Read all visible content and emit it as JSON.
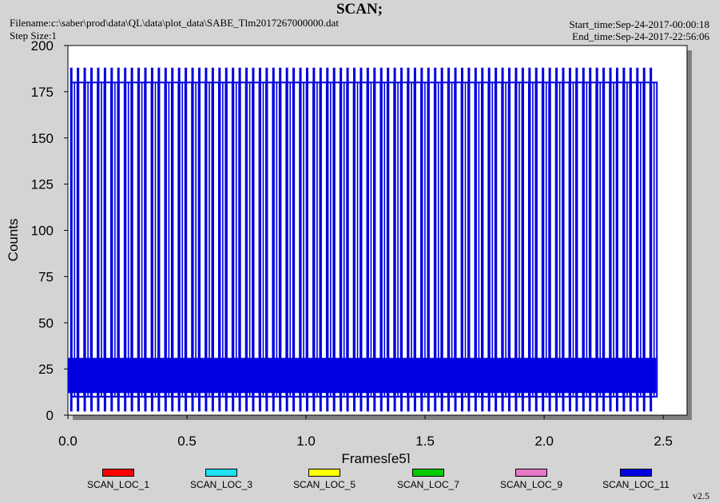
{
  "header": {
    "title": "SCAN;",
    "filename": "Filename:c:\\saber\\prod\\data\\QL\\data\\plot_data\\SABE_Tlm2017267000000.dat",
    "step_size": "Step Size:1",
    "start_time": "Start_time:Sep-24-2017-00:00:18",
    "end_time": "End_time:Sep-24-2017-22:56:06"
  },
  "version": "v2.5",
  "chart_data": {
    "type": "line",
    "title": "SCAN;",
    "xlabel": "Frames[e5]",
    "ylabel": "Counts",
    "xlim": [
      0,
      2.6
    ],
    "ylim": [
      0,
      200
    ],
    "x_ticks": [
      "0.0",
      "0.5",
      "1.0",
      "1.5",
      "2.0",
      "2.5"
    ],
    "y_ticks": [
      "0",
      "25",
      "50",
      "75",
      "100",
      "125",
      "150",
      "175",
      "200"
    ],
    "x_range": [
      0,
      2.47
    ],
    "scan_period": 0.0283,
    "series": [
      {
        "name": "SCAN_LOC_1",
        "color": "#ff0000",
        "values": []
      },
      {
        "name": "SCAN_LOC_3",
        "color": "#1ee0f0",
        "values": []
      },
      {
        "name": "SCAN_LOC_5",
        "color": "#ffff00",
        "values": []
      },
      {
        "name": "SCAN_LOC_7",
        "color": "#00cc00",
        "values": []
      },
      {
        "name": "SCAN_LOC_9",
        "color": "#e878c8",
        "values": []
      },
      {
        "name": "SCAN_LOC_11",
        "color": "#0000e0",
        "values": [
          {
            "low": 2,
            "high": 188
          },
          {
            "low": 10,
            "high": 180
          },
          {
            "low": 12,
            "high": 31
          }
        ]
      }
    ],
    "grid": false,
    "legend": "bottom"
  }
}
